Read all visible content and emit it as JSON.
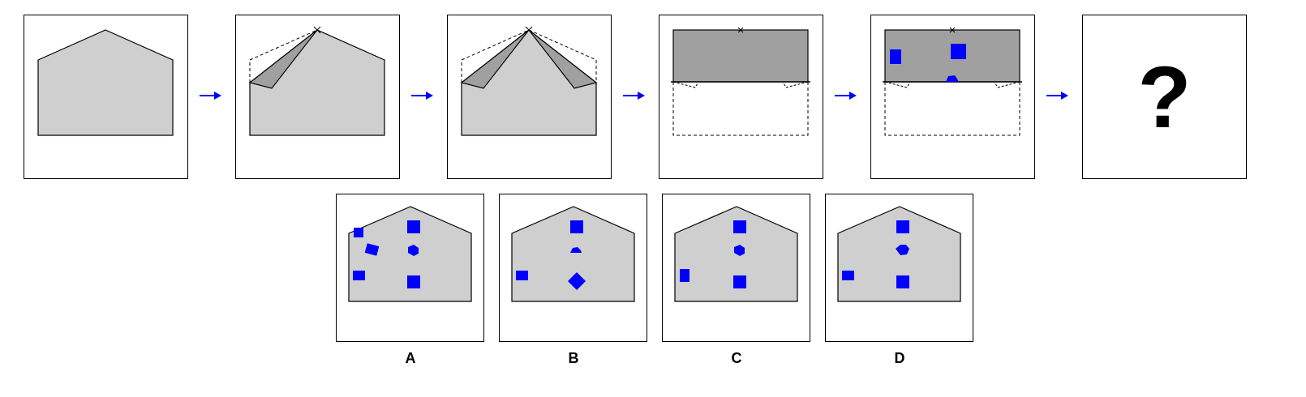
{
  "sequence": {
    "steps": [
      {
        "name": "step-1-pentagon",
        "description": ""
      },
      {
        "name": "step-2-fold-left-corner",
        "description": ""
      },
      {
        "name": "step-3-fold-both-corners",
        "description": ""
      },
      {
        "name": "step-4-fold-down",
        "description": ""
      },
      {
        "name": "step-5-punch-holes",
        "description": ""
      }
    ],
    "question_mark": "?"
  },
  "options": [
    {
      "label": "A"
    },
    {
      "label": "B"
    },
    {
      "label": "C"
    },
    {
      "label": "D"
    }
  ],
  "colors": {
    "paper": "#cfcfcf",
    "paper_folded": "#a0a0a0",
    "hole": "#0000ff",
    "arrow": "#0000ff",
    "outline": "#000000"
  }
}
